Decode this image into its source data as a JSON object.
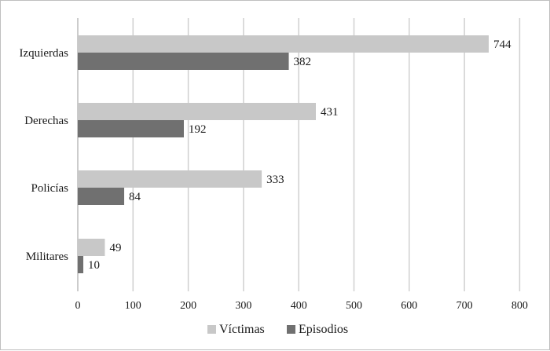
{
  "chart_data": {
    "type": "bar",
    "orientation": "horizontal",
    "title": "",
    "xlabel": "",
    "ylabel": "",
    "categories": [
      "Izquierdas",
      "Derechas",
      "Policías",
      "Militares"
    ],
    "series": [
      {
        "name": "Víctimas",
        "color": "#c8c8c8",
        "values": [
          744,
          431,
          333,
          49
        ]
      },
      {
        "name": "Episodios",
        "color": "#707070",
        "values": [
          382,
          192,
          84,
          10
        ]
      }
    ],
    "xlim": [
      0,
      800
    ],
    "xticks": [
      0,
      100,
      200,
      300,
      400,
      500,
      600,
      700,
      800
    ],
    "grid": true,
    "gridline_color": "#d0d0d0",
    "legend_position": "bottom"
  }
}
